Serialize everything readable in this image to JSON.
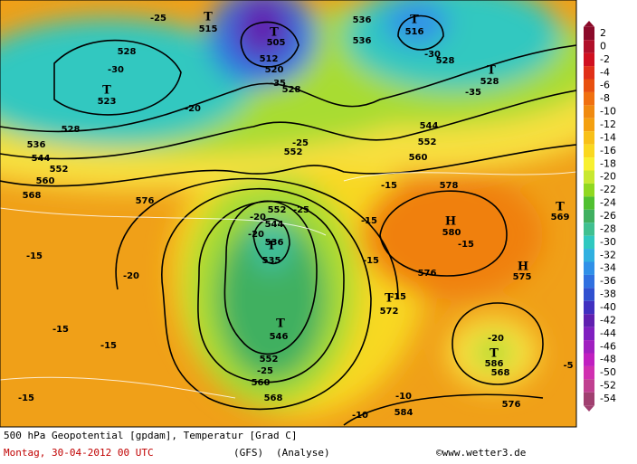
{
  "map": {
    "contour_labels": [
      "-25",
      "528",
      "-30",
      "523",
      "528",
      "536",
      "544",
      "552",
      "560",
      "568",
      "576",
      "515",
      "505",
      "512",
      "520",
      "-35",
      "528",
      "536",
      "536",
      "516",
      "-30",
      "528",
      "528",
      "-35",
      "544",
      "552",
      "560",
      "-20",
      "552",
      "-25",
      "552",
      "544",
      "536",
      "535",
      "-20",
      "-20",
      "-25",
      "546",
      "552",
      "-25",
      "560",
      "568",
      "-15",
      "-15",
      "-20",
      "-15",
      "-15",
      "-15",
      "-15",
      "578",
      "580",
      "-15",
      "576",
      "575",
      "569",
      "-15",
      "572",
      "-15",
      "-20",
      "586",
      "568",
      "576",
      "-10",
      "584",
      "-10",
      "-5"
    ],
    "pressure_centers": [
      "T",
      "T",
      "T",
      "T",
      "T",
      "T",
      "T",
      "H",
      "H",
      "T",
      "T",
      "T"
    ]
  },
  "colorbar": {
    "labels": [
      "2",
      "0",
      "-2",
      "-4",
      "-6",
      "-8",
      "-10",
      "-12",
      "-14",
      "-16",
      "-18",
      "-20",
      "-22",
      "-24",
      "-26",
      "-28",
      "-30",
      "-32",
      "-34",
      "-36",
      "-38",
      "-40",
      "-42",
      "-44",
      "-46",
      "-48",
      "-50",
      "-52",
      "-54"
    ],
    "colors": [
      "#8b0a2a",
      "#b0102a",
      "#d01020",
      "#e03018",
      "#e85010",
      "#f07010",
      "#f08a10",
      "#f4a010",
      "#f8c018",
      "#fad820",
      "#f8f030",
      "#c8e830",
      "#90d820",
      "#50c030",
      "#40b060",
      "#40c090",
      "#30c8c0",
      "#30b0e0",
      "#3090e8",
      "#3070e0",
      "#3050d0",
      "#4030c0",
      "#6020b0",
      "#8020c0",
      "#a020c0",
      "#c020c0",
      "#d030b0",
      "#c04090",
      "#a04070"
    ]
  },
  "footer": {
    "title": "500 hPa Geopotential [gpdam], Temperatur [Grad C]",
    "date": "Montag, 30-04-2012  00 UTC",
    "model": "(GFS)",
    "analysis": "(Analyse)",
    "copyright": "©www.wetter3.de"
  }
}
